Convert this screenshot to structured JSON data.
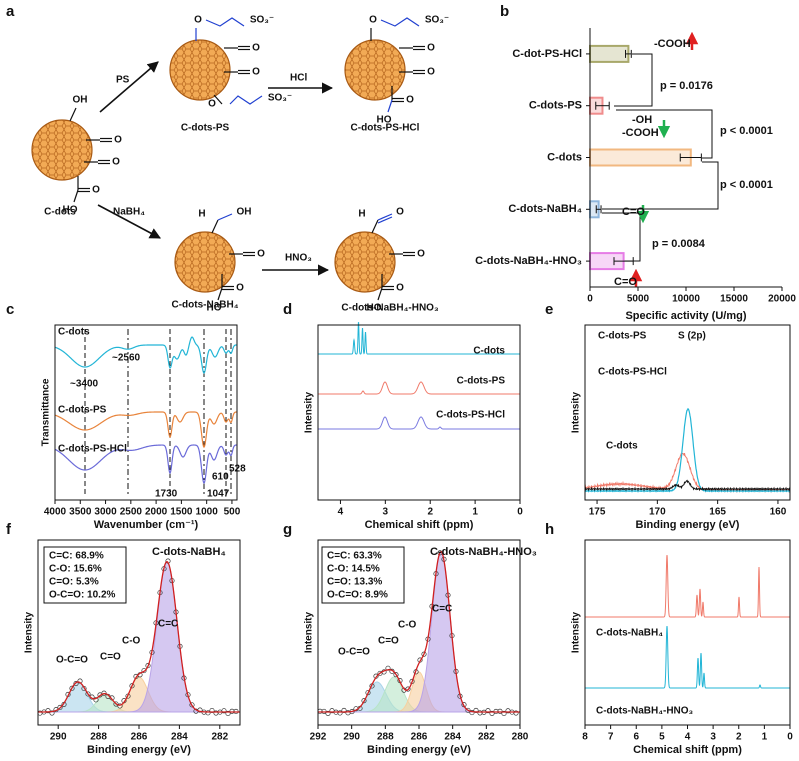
{
  "scheme": {
    "panel": "a",
    "compounds": [
      "C-dots",
      "C-dots-PS",
      "C-dots-PS-HCl",
      "C-dots-NaBH₄",
      "C-dots-NaBH₄-HNO₃"
    ],
    "reagents": [
      "PS",
      "HCl",
      "NaBH₄",
      "HNO₃"
    ],
    "atoms": {
      "o": "O",
      "h": "H",
      "oh": "OH",
      "ho": "HO",
      "so3": "SO₃⁻"
    }
  },
  "chart_data": [
    {
      "type": "bar",
      "panel": "b",
      "categories": [
        "C-dot-PS-HCl",
        "C-dots-PS",
        "C-dots",
        "C-dots-NaBH₄",
        "C-dots-NaBH₄-HNO₃"
      ],
      "values": [
        4000,
        1300,
        10500,
        900,
        3500
      ],
      "errors": [
        300,
        700,
        1100,
        250,
        1000
      ],
      "colors": [
        "#a8a86a",
        "#f08c8c",
        "#f2b880",
        "#8fb6dd",
        "#e67ce6"
      ],
      "xlim": [
        0,
        20000
      ],
      "xticks": [
        0,
        5000,
        10000,
        15000,
        20000
      ],
      "xlabel": "Specific activity (U/mg)",
      "annotations": [
        "-COOH",
        "p = 0.0176",
        "-OH",
        "-COOH",
        "p < 0.0001",
        "p < 0.0001",
        "C=O",
        "p = 0.0084",
        "C=O"
      ]
    },
    {
      "type": "spectrum",
      "panel": "c",
      "xlabel": "Wavenumber (cm⁻¹)",
      "ylabel": "Transmittance",
      "xlim": [
        4000,
        400
      ],
      "xticks": [
        4000,
        3500,
        3000,
        2500,
        2000,
        1500,
        1000,
        500
      ],
      "labels": [
        "C-dots",
        "C-dots-PS",
        "C-dots-PS-HCl",
        "~3400",
        "~2560",
        "1730",
        "1047",
        "610",
        "528"
      ]
    },
    {
      "type": "spectrum",
      "panel": "d",
      "xlabel": "Chemical shift (ppm)",
      "ylabel": "Intensity",
      "xlim": [
        4.5,
        0
      ],
      "xticks": [
        4,
        3,
        2,
        1,
        0
      ],
      "labels": [
        "C-dots",
        "C-dots-PS",
        "C-dots-PS-HCl"
      ]
    },
    {
      "type": "spectrum",
      "panel": "e",
      "xlabel": "Binding energy (eV)",
      "ylabel": "Intensity",
      "xlim": [
        176,
        159
      ],
      "xticks": [
        175,
        170,
        165,
        160
      ],
      "labels": [
        "C-dots-PS",
        "S (2p)",
        "C-dots-PS-HCl",
        "C-dots"
      ]
    },
    {
      "type": "spectrum",
      "panel": "f",
      "title": "C-dots-NaBH₄",
      "xlabel": "Binding energy (eV)",
      "ylabel": "Intensity",
      "xlim": [
        291,
        281
      ],
      "xticks": [
        290,
        288,
        286,
        284,
        282
      ],
      "composition": [
        "C=C: 68.9%",
        "C-O: 15.6%",
        "C=O: 5.3%",
        "O-C=O: 10.2%"
      ],
      "labels": [
        "O-C=O",
        "C=O",
        "C-O",
        "C=C"
      ]
    },
    {
      "type": "spectrum",
      "panel": "g",
      "title": "C-dots-NaBH₄-HNO₃",
      "xlabel": "Binding energy (eV)",
      "ylabel": "Intensity",
      "xlim": [
        292,
        280
      ],
      "xticks": [
        292,
        290,
        288,
        286,
        284,
        282,
        280
      ],
      "composition": [
        "C=C: 63.3%",
        "C-O: 14.5%",
        "C=O: 13.3%",
        "O-C=O: 8.9%"
      ],
      "labels": [
        "O-C=O",
        "C=O",
        "C-O",
        "C=C"
      ]
    },
    {
      "type": "spectrum",
      "panel": "h",
      "xlabel": "Chemical shift (ppm)",
      "ylabel": "Intensity",
      "xlim": [
        8,
        0
      ],
      "xticks": [
        8,
        7,
        6,
        5,
        4,
        3,
        2,
        1,
        0
      ],
      "labels": [
        "C-dots-NaBH₄",
        "C-dots-NaBH₄-HNO₃"
      ]
    }
  ]
}
